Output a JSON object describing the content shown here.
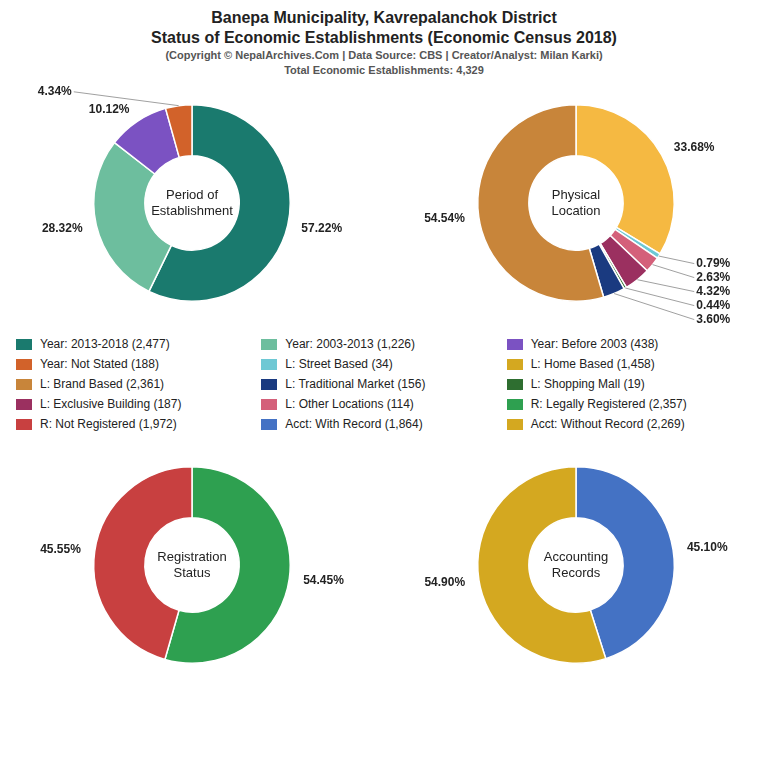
{
  "title": [
    "Banepa Municipality, Kavrepalanchok District",
    "Status of Economic Establishments (Economic Census 2018)"
  ],
  "subtitle": [
    "(Copyright © NepalArchives.Com | Data Source: CBS | Creator/Analyst: Milan Karki)",
    "Total Economic Establishments: 4,329"
  ],
  "chart_data": [
    {
      "type": "doughnut",
      "title": "Period of\nEstablishment",
      "values": [
        57.22,
        28.32,
        10.12,
        4.34
      ],
      "value_labels": [
        "57.22%",
        "28.32%",
        "10.12%",
        "4.34%"
      ],
      "colors": [
        "#1a7a6e",
        "#6dbe9e",
        "#7b52c2",
        "#d2622a"
      ],
      "data_labels": true
    },
    {
      "type": "doughnut",
      "title": "Physical\nLocation",
      "values": [
        33.68,
        0.79,
        2.63,
        4.32,
        0.44,
        3.6,
        54.54
      ],
      "value_labels": [
        "33.68%",
        "0.79%",
        "2.63%",
        "4.32%",
        "0.44%",
        "3.60%",
        "54.54%"
      ],
      "colors": [
        "#f5b942",
        "#6ec8d4",
        "#d4607a",
        "#9b3060",
        "#2e6e30",
        "#1a3a80",
        "#c8853a"
      ],
      "data_labels": true
    },
    {
      "type": "doughnut",
      "title": "Registration\nStatus",
      "values": [
        54.45,
        45.55
      ],
      "value_labels": [
        "54.45%",
        "45.55%"
      ],
      "colors": [
        "#2ea050",
        "#c84040"
      ],
      "data_labels": true
    },
    {
      "type": "doughnut",
      "title": "Accounting\nRecords",
      "values": [
        45.1,
        54.9
      ],
      "value_labels": [
        "45.10%",
        "54.90%"
      ],
      "colors": [
        "#4472c4",
        "#d4a820"
      ],
      "data_labels": true
    }
  ],
  "legend_items": [
    {
      "name": "Year: 2013-2018 (2,477)",
      "color": "#1a7a6e"
    },
    {
      "name": "Year: Not Stated (188)",
      "color": "#d2622a"
    },
    {
      "name": "L: Brand Based (2,361)",
      "color": "#c8853a"
    },
    {
      "name": "L: Exclusive Building (187)",
      "color": "#9b3060"
    },
    {
      "name": "R: Not Registered (1,972)",
      "color": "#c84040"
    },
    {
      "name": "Year: 2003-2013 (1,226)",
      "color": "#6dbe9e"
    },
    {
      "name": "L: Street Based (34)",
      "color": "#6ec8d4"
    },
    {
      "name": "L: Traditional Market (156)",
      "color": "#1a3a80"
    },
    {
      "name": "L: Other Locations (114)",
      "color": "#d4607a"
    },
    {
      "name": "Acct: With Record (1,864)",
      "color": "#4472c4"
    },
    {
      "name": "Year: Before 2003 (438)",
      "color": "#7b52c2"
    },
    {
      "name": "L: Home Based (1,458)",
      "color": "#d4a820"
    },
    {
      "name": "L: Shopping Mall (19)",
      "color": "#2e6e30"
    },
    {
      "name": "R: Legally Registered (2,357)",
      "color": "#2ea050"
    },
    {
      "name": "Acct: Without Record (2,269)",
      "color": "#d4a820"
    }
  ]
}
